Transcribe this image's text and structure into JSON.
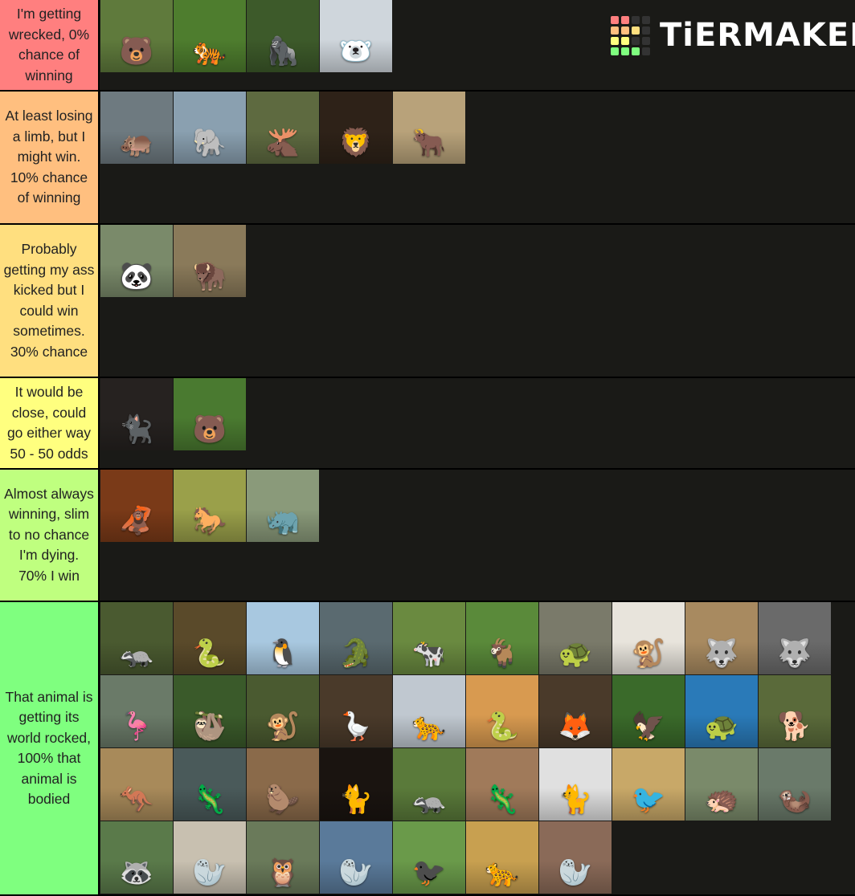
{
  "logo": {
    "text": "TiERMAKER",
    "grid_colors": [
      "#ff7f7f",
      "#ff7f7f",
      "#333333",
      "#333333",
      "#ffbf7f",
      "#ffbf7f",
      "#ffdf7f",
      "#333333",
      "#ffff7f",
      "#ffff7f",
      "#333333",
      "#333333",
      "#7fff7f",
      "#7fff7f",
      "#7fff7f",
      "#333333"
    ]
  },
  "tiers": [
    {
      "label": "I'm getting wrecked, 0% chance of winning",
      "color": "#ff7f7f",
      "items": [
        {
          "name": "brown-bear",
          "glyph": "🐻",
          "bg": "#5f7a3c"
        },
        {
          "name": "tiger",
          "glyph": "🐅",
          "bg": "#4e7d2e"
        },
        {
          "name": "gorilla",
          "glyph": "🦍",
          "bg": "#3d5a2a"
        },
        {
          "name": "polar-bear",
          "glyph": "🐻‍❄️",
          "bg": "#cfd6dc"
        }
      ]
    },
    {
      "label": "At least losing a limb, but I might win. 10% chance of winning",
      "color": "#ffbf7f",
      "items": [
        {
          "name": "hippo",
          "glyph": "🦛",
          "bg": "#6e7a80"
        },
        {
          "name": "elephant",
          "glyph": "🐘",
          "bg": "#8aa0b0"
        },
        {
          "name": "moose",
          "glyph": "🫎",
          "bg": "#5e6a40"
        },
        {
          "name": "lion",
          "glyph": "🦁",
          "bg": "#2e2218"
        },
        {
          "name": "bull",
          "glyph": "🐂",
          "bg": "#b8a27a"
        }
      ]
    },
    {
      "label": "Probably getting my ass kicked but I could win sometimes. 30% chance",
      "color": "#ffdf7f",
      "items": [
        {
          "name": "panda",
          "glyph": "🐼",
          "bg": "#7a8a6a"
        },
        {
          "name": "bison",
          "glyph": "🦬",
          "bg": "#8a7a5a"
        }
      ]
    },
    {
      "label": "It would be close, could go either way 50 - 50 odds",
      "color": "#ffff7f",
      "items": [
        {
          "name": "black-panther",
          "glyph": "🐈‍⬛",
          "bg": "#262220"
        },
        {
          "name": "black-bear",
          "glyph": "🐻",
          "bg": "#4a7a30"
        }
      ]
    },
    {
      "label": "Almost always winning, slim to no chance I'm dying. 70% I win",
      "color": "#bfff7f",
      "items": [
        {
          "name": "orangutan",
          "glyph": "🦧",
          "bg": "#7a3a18"
        },
        {
          "name": "horse",
          "glyph": "🐎",
          "bg": "#9aa04a"
        },
        {
          "name": "rhino",
          "glyph": "🦏",
          "bg": "#8a9a7a"
        }
      ]
    },
    {
      "label": "That animal is getting its world rocked, 100% that animal is bodied",
      "color": "#7fff7f",
      "items": [
        {
          "name": "badger",
          "glyph": "🦡",
          "bg": "#4a5a30"
        },
        {
          "name": "anaconda",
          "glyph": "🐍",
          "bg": "#5a4a2a"
        },
        {
          "name": "penguin",
          "glyph": "🐧",
          "bg": "#a8c8e0"
        },
        {
          "name": "alligator",
          "glyph": "🐊",
          "bg": "#5a6a70"
        },
        {
          "name": "cow",
          "glyph": "🐄",
          "bg": "#6a8a40"
        },
        {
          "name": "goat",
          "glyph": "🐐",
          "bg": "#5a8a3a"
        },
        {
          "name": "snapping-turtle",
          "glyph": "🐢",
          "bg": "#7a7a6a"
        },
        {
          "name": "monkey",
          "glyph": "🐒",
          "bg": "#e8e4dc"
        },
        {
          "name": "hyena",
          "glyph": "🐺",
          "bg": "#a88a60"
        },
        {
          "name": "wolf",
          "glyph": "🐺",
          "bg": "#6a6a6a"
        },
        {
          "name": "flamingo",
          "glyph": "🦩",
          "bg": "#6a7a68"
        },
        {
          "name": "sloth",
          "glyph": "🦥",
          "bg": "#3a5a2a"
        },
        {
          "name": "chimpanzee",
          "glyph": "🐒",
          "bg": "#4a5a30"
        },
        {
          "name": "goose",
          "glyph": "🪿",
          "bg": "#4a3a2a"
        },
        {
          "name": "snow-leopard",
          "glyph": "🐆",
          "bg": "#c0c8d0"
        },
        {
          "name": "cobra",
          "glyph": "🐍",
          "bg": "#d89a50"
        },
        {
          "name": "fox",
          "glyph": "🦊",
          "bg": "#4a3a2a"
        },
        {
          "name": "bald-eagle",
          "glyph": "🦅",
          "bg": "#3a6a2a"
        },
        {
          "name": "sea-turtle",
          "glyph": "🐢",
          "bg": "#2a7ab8"
        },
        {
          "name": "german-shepherd",
          "glyph": "🐕",
          "bg": "#5a6a3a"
        },
        {
          "name": "kangaroo",
          "glyph": "🦘",
          "bg": "#a88a5a"
        },
        {
          "name": "komodo-dragon",
          "glyph": "🦎",
          "bg": "#4a5a5a"
        },
        {
          "name": "platypus",
          "glyph": "🦫",
          "bg": "#8a6a4a"
        },
        {
          "name": "maine-coon",
          "glyph": "🐈",
          "bg": "#1a1410"
        },
        {
          "name": "wolverine",
          "glyph": "🦡",
          "bg": "#5a7a3a"
        },
        {
          "name": "gila-monster",
          "glyph": "🦎",
          "bg": "#a07a5a"
        },
        {
          "name": "lynx",
          "glyph": "🐈",
          "bg": "#e0e0e0"
        },
        {
          "name": "ostrich",
          "glyph": "🐦",
          "bg": "#c8a868"
        },
        {
          "name": "porcupine",
          "glyph": "🦔",
          "bg": "#7a8a6a"
        },
        {
          "name": "otter",
          "glyph": "🦦",
          "bg": "#6a7a6a"
        },
        {
          "name": "raccoon",
          "glyph": "🦝",
          "bg": "#5a7a4a"
        },
        {
          "name": "seal",
          "glyph": "🦭",
          "bg": "#c8c0b0"
        },
        {
          "name": "owl",
          "glyph": "🦉",
          "bg": "#6a7a5a"
        },
        {
          "name": "elephant-seal",
          "glyph": "🦭",
          "bg": "#5a7a9a"
        },
        {
          "name": "cassowary",
          "glyph": "🐦‍⬛",
          "bg": "#6a9a4a"
        },
        {
          "name": "cheetah",
          "glyph": "🐆",
          "bg": "#c8a050"
        },
        {
          "name": "walrus",
          "glyph": "🦭",
          "bg": "#8a6a58"
        }
      ]
    }
  ]
}
